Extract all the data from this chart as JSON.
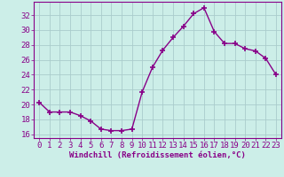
{
  "x": [
    0,
    1,
    2,
    3,
    4,
    5,
    6,
    7,
    8,
    9,
    10,
    11,
    12,
    13,
    14,
    15,
    16,
    17,
    18,
    19,
    20,
    21,
    22,
    23
  ],
  "y": [
    20.3,
    19.0,
    19.0,
    19.0,
    18.5,
    17.8,
    16.7,
    16.5,
    16.5,
    16.7,
    21.7,
    25.0,
    27.3,
    29.0,
    30.5,
    32.2,
    33.0,
    29.8,
    28.2,
    28.2,
    27.5,
    27.2,
    26.2,
    24.0
  ],
  "line_color": "#880088",
  "marker": "+",
  "markersize": 4,
  "linewidth": 1.0,
  "bg_color": "#cceee8",
  "grid_color": "#aacccc",
  "xlabel": "Windchill (Refroidissement éolien,°C)",
  "xlabel_fontsize": 6.5,
  "tick_fontsize": 6.5,
  "xlim": [
    -0.5,
    23.5
  ],
  "ylim": [
    15.5,
    33.8
  ],
  "yticks": [
    16,
    18,
    20,
    22,
    24,
    26,
    28,
    30,
    32
  ],
  "xticks": [
    0,
    1,
    2,
    3,
    4,
    5,
    6,
    7,
    8,
    9,
    10,
    11,
    12,
    13,
    14,
    15,
    16,
    17,
    18,
    19,
    20,
    21,
    22,
    23
  ]
}
